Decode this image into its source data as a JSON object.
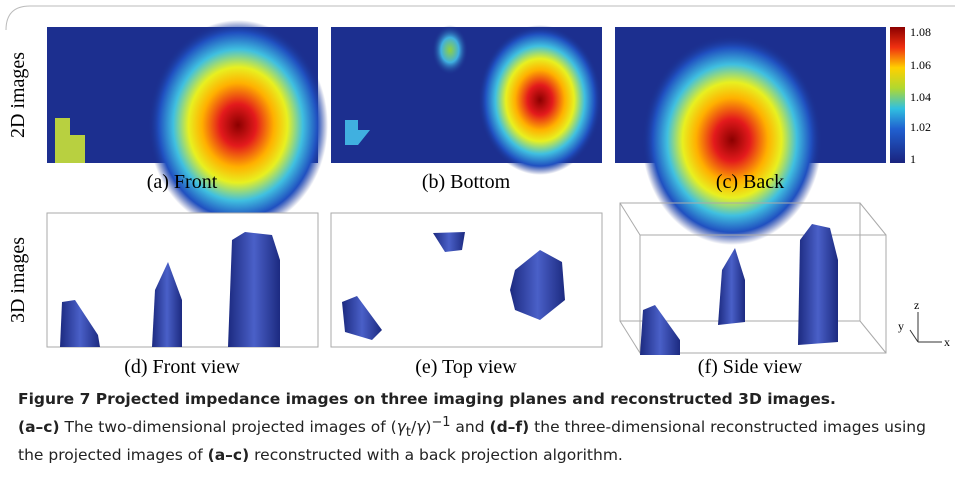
{
  "figure": {
    "row_labels": [
      "2D images",
      "3D images"
    ],
    "panels": [
      {
        "caption": "(a) Front"
      },
      {
        "caption": "(b) Bottom"
      },
      {
        "caption": "(c) Back"
      },
      {
        "caption": "(d) Front view"
      },
      {
        "caption": "(e) Top view"
      },
      {
        "caption": "(f) Side view"
      }
    ],
    "colorbar_ticks": [
      "1.08",
      "1.06",
      "1.04",
      "1.02",
      "1"
    ],
    "axes_labels": {
      "z": "z",
      "y": "y",
      "x": "x"
    }
  },
  "caption": {
    "title": "Figure 7 Projected impedance images on three imaging planes and reconstructed 3D images.",
    "segments": [
      {
        "text": "(a–c)",
        "style": "bold"
      },
      {
        "text": " The two-dimensional projected images of (",
        "style": "normal"
      },
      {
        "text": "γ",
        "style": "italic"
      },
      {
        "text": "t",
        "style": "sub"
      },
      {
        "text": "/",
        "style": "normal"
      },
      {
        "text": "γ",
        "style": "italic"
      },
      {
        "text": ")",
        "style": "normal"
      },
      {
        "text": "−1",
        "style": "sup"
      },
      {
        "text": " and ",
        "style": "normal"
      },
      {
        "text": "(d–f)",
        "style": "bold"
      },
      {
        "text": " the three-dimensional reconstructed images using the projected images of ",
        "style": "normal"
      },
      {
        "text": "(a–c)",
        "style": "bold"
      },
      {
        "text": " reconstructed with a back projection algorithm.",
        "style": "normal"
      }
    ]
  }
}
